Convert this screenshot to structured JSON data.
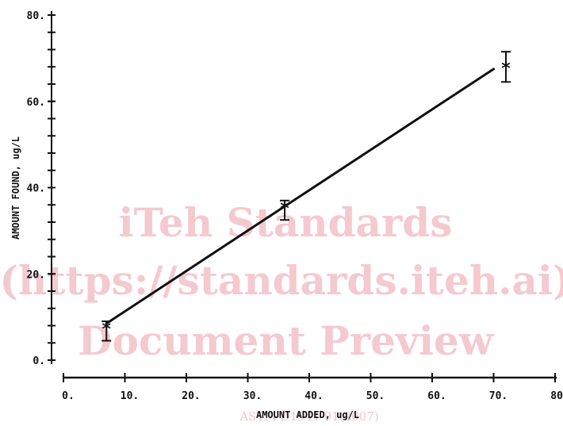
{
  "chart_data": {
    "type": "scatter",
    "title": "",
    "xlabel": "AMOUNT ADDED, ug/L",
    "ylabel": "AMOUNT FOUND, ug/L",
    "xlim": [
      0,
      80
    ],
    "ylim": [
      0,
      80
    ],
    "x_ticks": [
      "0.",
      "10.",
      "20.",
      "30.",
      "40.",
      "50.",
      "60.",
      "70.",
      "80."
    ],
    "y_ticks": [
      "0.",
      "20.",
      "40.",
      "60.",
      "80."
    ],
    "y_tick_values": [
      0,
      20,
      40,
      60,
      80
    ],
    "y_minor_step": 4,
    "x_minor_step": 10,
    "points": [
      {
        "x": 7,
        "y": 7.5,
        "err_low": 4.5,
        "err_high": 9.0
      },
      {
        "x": 36,
        "y": 35.5,
        "err_low": 32.5,
        "err_high": 37.0
      },
      {
        "x": 72,
        "y": 68.0,
        "err_low": 64.5,
        "err_high": 71.5
      }
    ],
    "fit_line": {
      "x": [
        7,
        70
      ],
      "y": [
        8.5,
        67.5
      ]
    },
    "marker": "*",
    "grid": false
  },
  "watermark": {
    "lines": [
      "iTeh Standards",
      "(https://standards.iteh.ai)",
      "Document Preview"
    ],
    "footer": "ASTM D1941-91(2007)"
  }
}
